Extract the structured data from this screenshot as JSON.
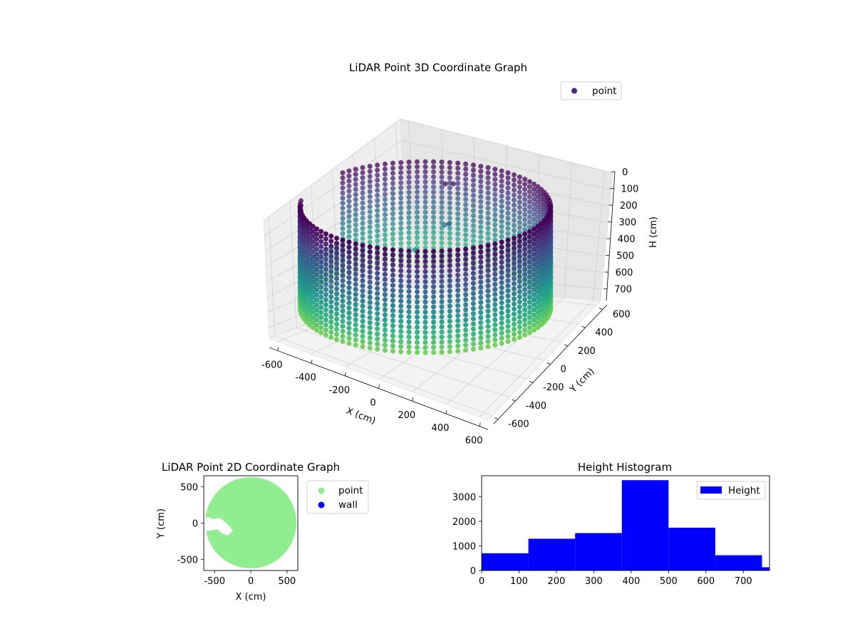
{
  "chart_data": [
    {
      "type": "scatter",
      "projection": "3d",
      "title": "LiDAR Point 3D Coordinate Graph",
      "xlabel": "X (cm)",
      "ylabel": "Y (cm)",
      "zlabel": "H (cm)",
      "xlim": [
        -650,
        650
      ],
      "ylim": [
        -650,
        650
      ],
      "zlim": [
        770,
        0
      ],
      "z_inverted": true,
      "xticks": [
        -600,
        -400,
        -200,
        0,
        200,
        400,
        600
      ],
      "yticks": [
        -600,
        -400,
        -200,
        0,
        200,
        400,
        600
      ],
      "zticks": [
        0,
        100,
        200,
        300,
        400,
        500,
        600,
        700
      ],
      "grid": true,
      "legend": {
        "position": "top-right",
        "entries": [
          "point"
        ]
      },
      "colormap": "viridis",
      "marker_color": "#482878",
      "series": [
        {
          "name": "point",
          "description": "cylindrical wall of points, radius ~600 cm, heights 0-750 cm, colored by height",
          "wall_radius": 600,
          "height_range": [
            0,
            750
          ],
          "sample_points": [
            {
              "x": -560,
              "y": 450,
              "h": 380
            },
            {
              "x": -610,
              "y": 300,
              "h": 520
            },
            {
              "x": -150,
              "y": -20,
              "h": 90
            },
            {
              "x": -120,
              "y": 0,
              "h": 80
            },
            {
              "x": -250,
              "y": 120,
              "h": 300
            }
          ]
        }
      ]
    },
    {
      "type": "scatter",
      "title": "LiDAR Point 2D Coordinate Graph",
      "xlabel": "X (cm)",
      "ylabel": "Y (cm)",
      "xlim": [
        -650,
        650
      ],
      "ylim": [
        -650,
        650
      ],
      "xticks": [
        -500,
        0,
        500
      ],
      "yticks": [
        -500,
        0,
        500
      ],
      "legend": {
        "position": "outside-right",
        "entries": [
          "point",
          "wall"
        ]
      },
      "series": [
        {
          "name": "point",
          "color": "#90ee90",
          "description": "filled disk of radius ~620 cm centered at origin"
        },
        {
          "name": "wall",
          "color": "#0000ff"
        }
      ]
    },
    {
      "type": "bar",
      "subtype": "histogram",
      "title": "Height Histogram",
      "xlim": [
        0,
        770
      ],
      "ylim": [
        0,
        3850
      ],
      "xticks": [
        0,
        100,
        200,
        300,
        400,
        500,
        600,
        700
      ],
      "yticks": [
        0,
        1000,
        2000,
        3000
      ],
      "legend": {
        "position": "top-right",
        "entries": [
          "Height"
        ]
      },
      "series": [
        {
          "name": "Height",
          "color": "#0000ff",
          "bins": [
            {
              "x0": 0,
              "x1": 125,
              "count": 700
            },
            {
              "x0": 125,
              "x1": 250,
              "count": 1290
            },
            {
              "x0": 250,
              "x1": 375,
              "count": 1520
            },
            {
              "x0": 375,
              "x1": 500,
              "count": 3670
            },
            {
              "x0": 500,
              "x1": 625,
              "count": 1740
            },
            {
              "x0": 625,
              "x1": 750,
              "count": 620
            },
            {
              "x0": 750,
              "x1": 770,
              "count": 130
            }
          ]
        }
      ]
    }
  ]
}
